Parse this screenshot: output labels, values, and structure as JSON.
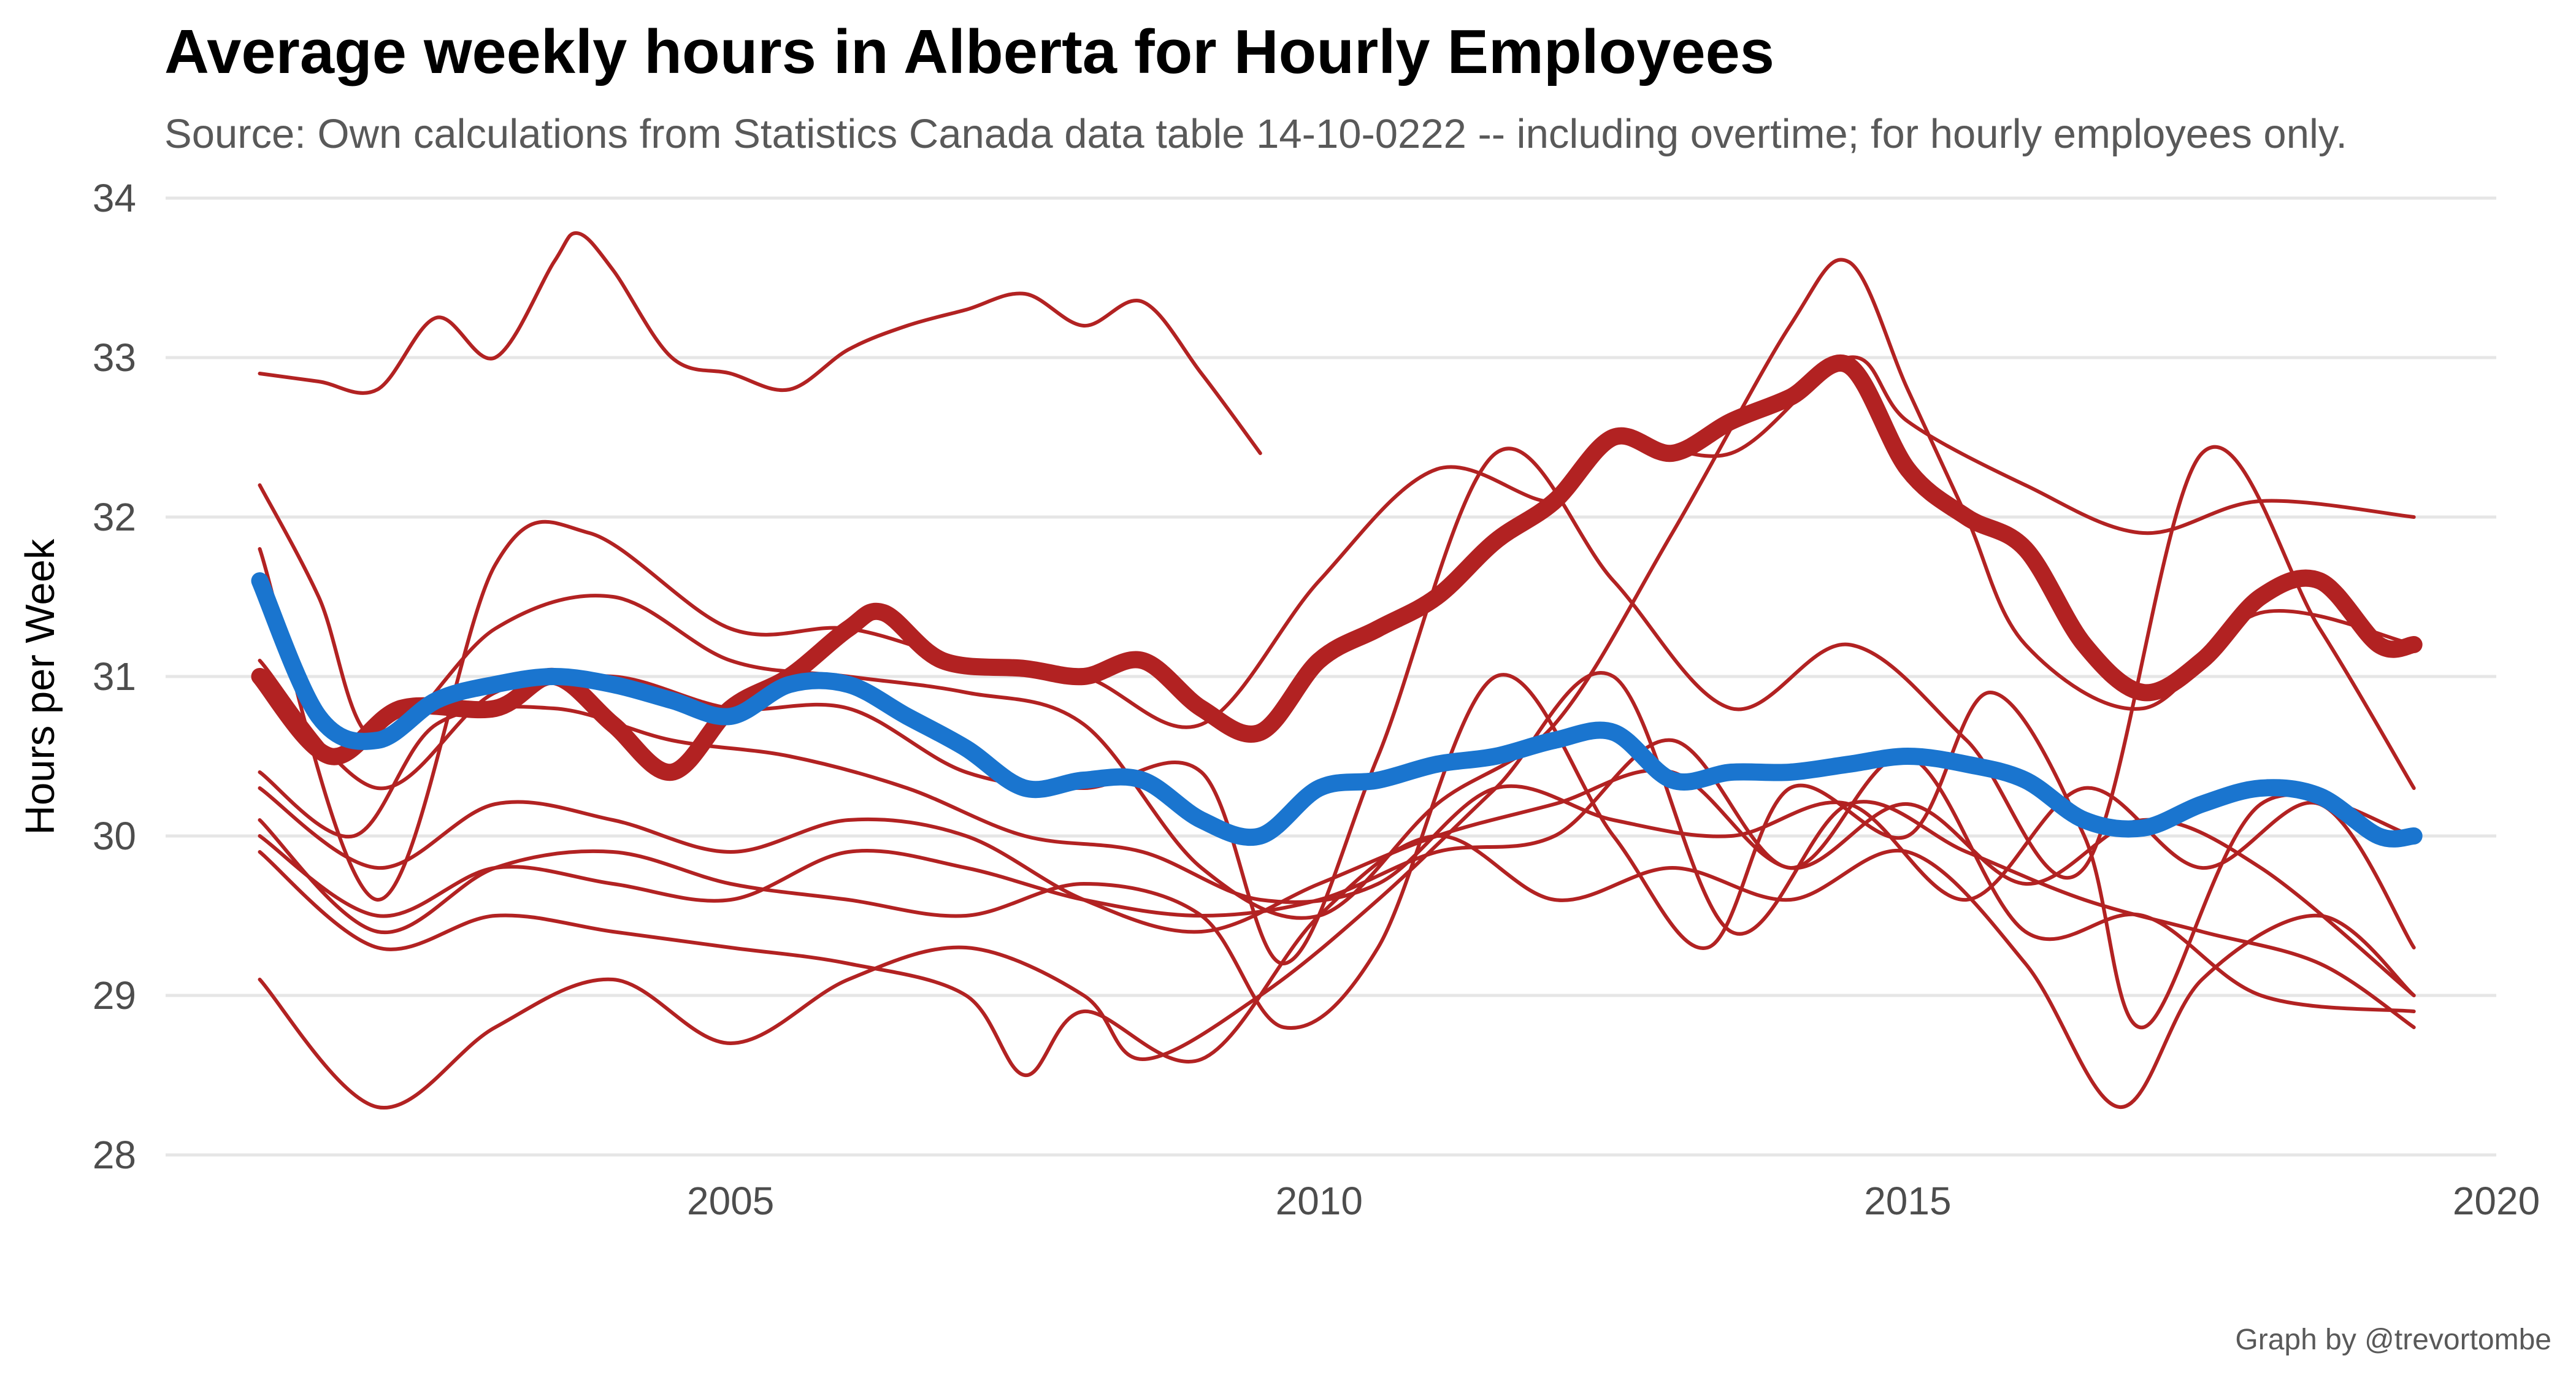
{
  "title": "Average weekly hours in Alberta for Hourly Employees",
  "subtitle": "Source: Own calculations from  Statistics Canada data table 14-10-0222 -- including overtime; for hourly employees only.",
  "credit": "Graph by @trevortombe",
  "chart_data": {
    "type": "line",
    "title": "Average weekly hours in Alberta for Hourly Employees",
    "xlabel": "",
    "ylabel": "Hours per Week",
    "xlim": [
      2000.2,
      2020
    ],
    "ylim": [
      28,
      34
    ],
    "x_ticks": [
      2005,
      2010,
      2015,
      2020
    ],
    "y_ticks": [
      28,
      29,
      30,
      31,
      32,
      33,
      34
    ],
    "grid": true,
    "legend": "none",
    "colors": {
      "industry": "#b22222",
      "alberta": "#b22222",
      "canada": "#1a75cf",
      "grid": "#e6e6e6"
    },
    "series": [
      {
        "role": "industry",
        "x": [
          2001.0,
          2001.5,
          2002.0,
          2002.5,
          2003.0,
          2003.5,
          2003.7,
          2004.0,
          2004.5,
          2005.0,
          2005.5,
          2006.0,
          2006.5,
          2007.0,
          2007.5,
          2008.0,
          2008.5,
          2009.0,
          2009.5
        ],
        "values": [
          32.9,
          32.85,
          32.8,
          33.25,
          33.0,
          33.6,
          33.78,
          33.55,
          33.0,
          32.9,
          32.8,
          33.05,
          33.2,
          33.3,
          33.4,
          33.2,
          33.35,
          32.9,
          32.4
        ]
      },
      {
        "role": "industry",
        "x": [
          2001.0,
          2001.5,
          2002.0,
          2003.0,
          2004.0,
          2005.0,
          2006.0,
          2007.0,
          2008.0,
          2009.0,
          2010.0,
          2011.0,
          2012.0,
          2013.0,
          2014.0,
          2014.5,
          2015.0,
          2015.5,
          2016.0,
          2017.0,
          2018.0,
          2019.3
        ],
        "values": [
          32.2,
          31.5,
          30.6,
          31.3,
          31.5,
          31.1,
          31.0,
          30.9,
          30.7,
          29.8,
          29.5,
          30.2,
          30.7,
          31.9,
          33.2,
          33.6,
          32.8,
          32.0,
          31.2,
          30.8,
          31.4,
          31.2
        ]
      },
      {
        "role": "industry",
        "x": [
          2001.0,
          2002.0,
          2003.0,
          2003.8,
          2005.0,
          2006.0,
          2007.0,
          2008.0,
          2009.0,
          2010.0,
          2011.0,
          2012.0,
          2012.5,
          2013.5,
          2014.5,
          2015.0,
          2016.0,
          2017.0,
          2018.0,
          2019.3
        ],
        "values": [
          31.8,
          29.6,
          31.7,
          31.9,
          31.3,
          31.3,
          31.1,
          31.0,
          30.7,
          31.6,
          32.3,
          32.1,
          32.5,
          32.4,
          33.0,
          32.6,
          32.2,
          31.9,
          32.1,
          32.0
        ]
      },
      {
        "role": "industry",
        "x": [
          2001.0,
          2002.0,
          2003.0,
          2004.0,
          2005.0,
          2006.0,
          2007.0,
          2008.0,
          2009.0,
          2009.7,
          2010.5,
          2011.5,
          2012.5,
          2013.5,
          2014.5,
          2015.5,
          2016.5,
          2017.5,
          2018.5,
          2019.3
        ],
        "values": [
          31.1,
          30.3,
          30.9,
          31.0,
          30.8,
          30.8,
          30.4,
          30.3,
          30.4,
          29.2,
          30.5,
          32.4,
          31.6,
          30.8,
          31.2,
          30.6,
          29.8,
          32.4,
          31.3,
          30.3
        ]
      },
      {
        "role": "industry",
        "x": [
          2001.0,
          2001.8,
          2002.5,
          2003.5,
          2004.5,
          2005.5,
          2006.5,
          2007.5,
          2008.5,
          2009.5,
          2010.5,
          2011.5,
          2012.5,
          2013.5,
          2014.5,
          2015.5,
          2016.5,
          2017.5,
          2018.5,
          2019.3
        ],
        "values": [
          30.4,
          30.0,
          30.7,
          30.8,
          30.6,
          30.5,
          30.3,
          30.0,
          29.9,
          29.6,
          29.7,
          30.3,
          30.1,
          30.0,
          30.2,
          29.6,
          30.3,
          29.8,
          30.2,
          29.3
        ]
      },
      {
        "role": "industry",
        "x": [
          2001.0,
          2002.0,
          2003.0,
          2004.0,
          2005.0,
          2006.0,
          2007.0,
          2008.0,
          2009.0,
          2010.0,
          2011.0,
          2012.0,
          2013.0,
          2014.0,
          2015.0,
          2016.0,
          2017.0,
          2018.0,
          2019.3
        ],
        "values": [
          30.3,
          29.8,
          30.2,
          30.1,
          29.9,
          30.1,
          30.0,
          29.6,
          29.4,
          29.7,
          30.0,
          30.2,
          30.4,
          29.8,
          30.2,
          29.7,
          30.1,
          29.8,
          29.0
        ]
      },
      {
        "role": "industry",
        "x": [
          2001.0,
          2002.0,
          2003.0,
          2004.0,
          2005.0,
          2006.0,
          2007.0,
          2008.0,
          2009.0,
          2010.0,
          2011.0,
          2012.0,
          2013.0,
          2014.0,
          2015.0,
          2016.0,
          2017.0,
          2018.0,
          2019.3
        ],
        "values": [
          30.0,
          29.5,
          29.8,
          29.7,
          29.6,
          29.9,
          29.8,
          29.6,
          29.5,
          29.6,
          29.9,
          30.0,
          30.6,
          29.8,
          30.5,
          29.4,
          29.5,
          29.0,
          28.9
        ]
      },
      {
        "role": "industry",
        "x": [
          2001.0,
          2002.0,
          2003.0,
          2004.0,
          2005.0,
          2006.0,
          2007.0,
          2007.5,
          2008.0,
          2009.0,
          2010.0,
          2011.0,
          2012.0,
          2013.0,
          2014.0,
          2015.0,
          2016.0,
          2016.8,
          2017.5,
          2018.5,
          2019.3
        ],
        "values": [
          29.9,
          29.3,
          29.5,
          29.4,
          29.3,
          29.2,
          29.0,
          28.5,
          28.9,
          28.6,
          29.5,
          30.0,
          29.6,
          29.8,
          29.6,
          29.9,
          29.2,
          28.3,
          29.1,
          29.5,
          29.0
        ]
      },
      {
        "role": "industry",
        "x": [
          2001.0,
          2002.0,
          2003.0,
          2004.0,
          2005.0,
          2006.0,
          2007.0,
          2008.0,
          2008.5,
          2009.5,
          2010.5,
          2011.5,
          2012.5,
          2013.5,
          2014.5,
          2015.5,
          2016.5,
          2017.5,
          2018.5,
          2019.3
        ],
        "values": [
          29.1,
          28.3,
          28.8,
          29.1,
          28.7,
          29.1,
          29.3,
          29.0,
          28.6,
          29.0,
          29.6,
          30.3,
          31.0,
          29.4,
          30.2,
          29.9,
          29.6,
          29.4,
          29.2,
          28.8
        ]
      },
      {
        "role": "industry",
        "x": [
          2001.0,
          2002.0,
          2003.0,
          2004.0,
          2005.0,
          2006.0,
          2007.0,
          2008.0,
          2009.0,
          2009.7,
          2010.5,
          2011.5,
          2012.5,
          2013.3,
          2014.0,
          2015.0,
          2015.7,
          2016.5,
          2017.0,
          2018.0,
          2019.3
        ],
        "values": [
          30.1,
          29.4,
          29.8,
          29.9,
          29.7,
          29.6,
          29.5,
          29.7,
          29.5,
          28.8,
          29.3,
          31.0,
          30.0,
          29.3,
          30.3,
          30.0,
          30.9,
          30.0,
          28.8,
          30.2,
          30.0
        ]
      },
      {
        "role": "alberta",
        "x": [
          2001.0,
          2001.6,
          2002.2,
          2003.0,
          2003.5,
          2004.0,
          2004.5,
          2005.0,
          2005.5,
          2006.0,
          2006.3,
          2006.8,
          2007.5,
          2008.0,
          2008.5,
          2009.0,
          2009.5,
          2010.0,
          2010.5,
          2011.0,
          2011.5,
          2012.0,
          2012.5,
          2013.0,
          2013.5,
          2014.0,
          2014.5,
          2015.0,
          2015.5,
          2016.0,
          2016.5,
          2017.0,
          2017.5,
          2018.0,
          2018.5,
          2019.0,
          2019.3
        ],
        "values": [
          31.0,
          30.5,
          30.8,
          30.8,
          31.0,
          30.7,
          30.4,
          30.8,
          31.0,
          31.3,
          31.4,
          31.1,
          31.05,
          31.0,
          31.1,
          30.8,
          30.65,
          31.1,
          31.3,
          31.5,
          31.85,
          32.1,
          32.5,
          32.4,
          32.6,
          32.75,
          32.95,
          32.3,
          32.0,
          31.8,
          31.2,
          30.9,
          31.1,
          31.5,
          31.6,
          31.2,
          31.2
        ]
      },
      {
        "role": "canada",
        "x": [
          2001.0,
          2001.5,
          2002.0,
          2002.5,
          2003.0,
          2003.5,
          2004.0,
          2004.5,
          2005.0,
          2005.5,
          2006.0,
          2006.5,
          2007.0,
          2007.5,
          2008.0,
          2008.5,
          2009.0,
          2009.5,
          2010.0,
          2010.5,
          2011.0,
          2011.5,
          2012.0,
          2012.5,
          2013.0,
          2013.5,
          2014.0,
          2014.5,
          2015.0,
          2015.5,
          2016.0,
          2016.5,
          2017.0,
          2017.5,
          2018.0,
          2018.5,
          2019.0,
          2019.3
        ],
        "values": [
          31.6,
          30.75,
          30.6,
          30.85,
          30.95,
          31.0,
          30.95,
          30.85,
          30.75,
          30.95,
          30.95,
          30.75,
          30.55,
          30.3,
          30.35,
          30.35,
          30.1,
          30.0,
          30.3,
          30.35,
          30.45,
          30.5,
          30.6,
          30.65,
          30.35,
          30.4,
          30.4,
          30.45,
          30.5,
          30.45,
          30.35,
          30.1,
          30.05,
          30.2,
          30.3,
          30.25,
          30.0,
          30.0
        ]
      }
    ]
  }
}
